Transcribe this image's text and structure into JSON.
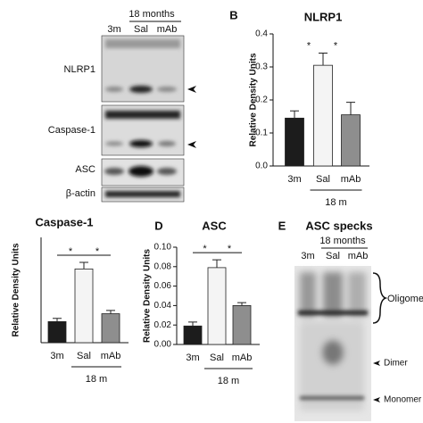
{
  "blot_a": {
    "group_label": "18 months",
    "lanes": [
      "3m",
      "Sal",
      "mAb"
    ],
    "rows": [
      "NLRP1",
      "Caspase-1",
      "ASC",
      "β-actin"
    ]
  },
  "chart_data": [
    {
      "type": "bar",
      "panel_label": "B",
      "title": "NLRP1",
      "y_label": "Relative Density Units",
      "categories": [
        "3m",
        "Sal",
        "mAb"
      ],
      "group_label": "18 m",
      "values": [
        0.145,
        0.305,
        0.155
      ],
      "errors": [
        0.022,
        0.037,
        0.038
      ],
      "colors": [
        "#1c1c1c",
        "#f4f4f4",
        "#8e8e8e"
      ],
      "ylim": [
        0,
        0.4
      ],
      "yticks": [
        {
          "value": 0,
          "label": "0.0"
        },
        {
          "value": 0.1,
          "label": "0.1"
        },
        {
          "value": 0.2,
          "label": "0.2"
        },
        {
          "value": 0.3,
          "label": "0.3"
        },
        {
          "value": 0.4,
          "label": "0.4"
        }
      ],
      "significance": [
        "*",
        "*"
      ],
      "brackets": false
    },
    {
      "type": "bar",
      "title": "Caspase-1",
      "y_label": "Relative Density Units",
      "categories": [
        "3m",
        "Sal",
        "mAb"
      ],
      "group_label": "18 m",
      "values": [
        0.16,
        0.56,
        0.22
      ],
      "errors": [
        0.025,
        0.05,
        0.025
      ],
      "colors": [
        "#1c1c1c",
        "#f4f4f4",
        "#8e8e8e"
      ],
      "ylim": [
        0,
        0.8
      ],
      "significance": [
        "*",
        "*"
      ],
      "brackets": true
    },
    {
      "type": "bar",
      "panel_label": "D",
      "title": "ASC",
      "y_label": "Relative Density Units",
      "categories": [
        "3m",
        "Sal",
        "mAb"
      ],
      "group_label": "18 m",
      "values": [
        0.019,
        0.079,
        0.04
      ],
      "errors": [
        0.004,
        0.008,
        0.003
      ],
      "colors": [
        "#1c1c1c",
        "#f4f4f4",
        "#8e8e8e"
      ],
      "ylim": [
        0,
        0.1
      ],
      "yticks": [
        {
          "value": 0,
          "label": "0.00"
        },
        {
          "value": 0.02,
          "label": "0.02"
        },
        {
          "value": 0.04,
          "label": "0.04"
        },
        {
          "value": 0.06,
          "label": "0.06"
        },
        {
          "value": 0.08,
          "label": "0.08"
        },
        {
          "value": 0.1,
          "label": "0.10"
        }
      ],
      "significance": [
        "*",
        "*"
      ],
      "brackets": true
    }
  ],
  "blot_e": {
    "panel_label": "E",
    "title": "ASC specks",
    "group_label": "18 months",
    "lanes": [
      "3m",
      "Sal",
      "mAb"
    ],
    "bands": [
      "Oligomer",
      "Dimer",
      "Monomer"
    ]
  }
}
